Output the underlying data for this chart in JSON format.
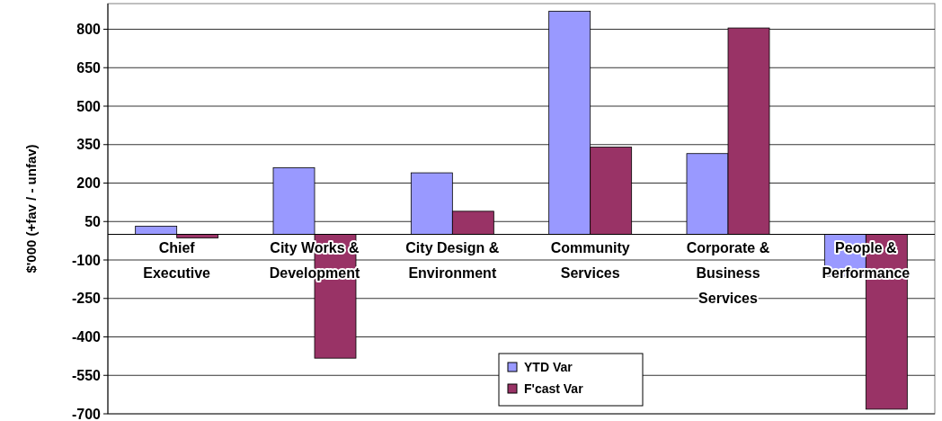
{
  "chart_data": {
    "type": "bar",
    "ylabel": "$'000 (+fav / - unfav)",
    "categories": [
      "Chief Executive",
      "City Works & Development",
      "City Design & Environment",
      "Community Services",
      "Corporate & Business Services",
      "People & Performance"
    ],
    "series": [
      {
        "name": "YTD Var",
        "color": "#9999ff",
        "values": [
          32,
          260,
          240,
          870,
          315,
          -163
        ]
      },
      {
        "name": "F'cast Var",
        "color": "#993366",
        "values": [
          -14,
          -483,
          90,
          340,
          805,
          -682
        ]
      }
    ],
    "ylim": [
      -700,
      900
    ],
    "yticks": [
      -700,
      -550,
      -400,
      -250,
      -100,
      50,
      200,
      350,
      500,
      650,
      800
    ],
    "grid": "y",
    "legend": "bottom"
  }
}
